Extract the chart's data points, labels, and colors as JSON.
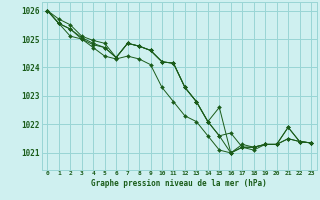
{
  "title": "Graphe pression niveau de la mer (hPa)",
  "bg_color": "#cff0f0",
  "line_color": "#1a5c1a",
  "grid_color": "#99d5d5",
  "xlim": [
    -0.5,
    23.5
  ],
  "ylim": [
    1020.4,
    1026.3
  ],
  "yticks": [
    1021,
    1022,
    1023,
    1024,
    1025,
    1026
  ],
  "xticks": [
    0,
    1,
    2,
    3,
    4,
    5,
    6,
    7,
    8,
    9,
    10,
    11,
    12,
    13,
    14,
    15,
    16,
    17,
    18,
    19,
    20,
    21,
    22,
    23
  ],
  "series": [
    [
      1026.0,
      1025.7,
      1025.5,
      1025.1,
      1024.95,
      1024.85,
      1024.35,
      1024.85,
      1024.75,
      1024.6,
      1024.2,
      1024.15,
      1023.3,
      1022.8,
      1022.1,
      1021.6,
      1021.0,
      1021.3,
      1021.2,
      1021.3,
      1021.3,
      1021.5,
      1021.4,
      1021.35
    ],
    [
      1026.0,
      1025.55,
      1025.35,
      1025.05,
      1024.85,
      1024.7,
      1024.35,
      1024.85,
      1024.75,
      1024.6,
      1024.2,
      1024.15,
      1023.3,
      1022.8,
      1022.1,
      1021.6,
      1021.7,
      1021.2,
      1021.1,
      1021.3,
      1021.3,
      1021.5,
      1021.4,
      1021.35
    ],
    [
      1026.0,
      1025.55,
      1025.35,
      1025.0,
      1024.8,
      1024.7,
      1024.35,
      1024.85,
      1024.75,
      1024.6,
      1024.2,
      1024.15,
      1023.3,
      1022.8,
      1022.1,
      1022.6,
      1021.0,
      1021.2,
      1021.2,
      1021.3,
      1021.3,
      1021.9,
      1021.4,
      1021.35
    ],
    [
      1026.0,
      1025.55,
      1025.1,
      1025.0,
      1024.7,
      1024.4,
      1024.3,
      1024.4,
      1024.3,
      1024.1,
      1023.3,
      1022.8,
      1022.3,
      1022.1,
      1021.6,
      1021.1,
      1021.0,
      1021.2,
      1021.2,
      1021.3,
      1021.3,
      1021.9,
      1021.4,
      1021.35
    ]
  ],
  "x_series": [
    0,
    1,
    2,
    3,
    4,
    5,
    6,
    7,
    8,
    9,
    10,
    11,
    12,
    13,
    14,
    15,
    16,
    17,
    18,
    19,
    20,
    21,
    22,
    23
  ]
}
